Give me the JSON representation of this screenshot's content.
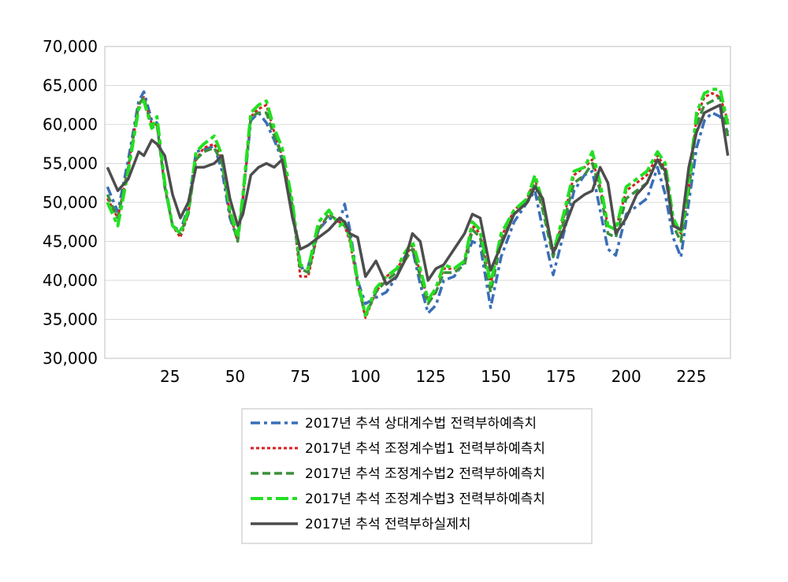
{
  "chart_data": {
    "type": "line",
    "title": "",
    "xlabel": "",
    "ylabel": "",
    "xlim": [
      0,
      240
    ],
    "ylim": [
      30000,
      70000
    ],
    "x_ticks": [
      25,
      50,
      75,
      100,
      125,
      150,
      175,
      200,
      225
    ],
    "x_tick_labels": [
      "25",
      "50",
      "75",
      "100",
      "125",
      "150",
      "175",
      "200",
      "225"
    ],
    "y_ticks": [
      30000,
      35000,
      40000,
      45000,
      50000,
      55000,
      60000,
      65000,
      70000
    ],
    "y_tick_labels": [
      "30,000",
      "35,000",
      "40,000",
      "45,000",
      "50,000",
      "55,000",
      "60,000",
      "65,000",
      "70,000"
    ],
    "grid": true,
    "legend_position": "bottom",
    "x": [
      1,
      5,
      9,
      13,
      15,
      18,
      20,
      23,
      26,
      29,
      32,
      35,
      38,
      42,
      45,
      48,
      51,
      53,
      56,
      59,
      62,
      65,
      68,
      72,
      75,
      78,
      82,
      86,
      90,
      92,
      94,
      97,
      100,
      104,
      108,
      112,
      115,
      118,
      121,
      124,
      127,
      130,
      134,
      138,
      141,
      144,
      148,
      152,
      157,
      162,
      165,
      168,
      172,
      176,
      180,
      184,
      187,
      190,
      193,
      196,
      200,
      204,
      208,
      212,
      215,
      218,
      221,
      224,
      227,
      230,
      233,
      236,
      239
    ],
    "series": [
      {
        "name": "2017년 추석 상대계수법 전력부하예측치",
        "color": "#3A6EB8",
        "dash": "dashdot",
        "values": [
          52000,
          48800,
          55500,
          63000,
          64200,
          60500,
          60200,
          52000,
          47000,
          46300,
          49500,
          56500,
          56800,
          57200,
          54000,
          48000,
          45200,
          50500,
          60500,
          61500,
          60200,
          58000,
          55500,
          49000,
          41500,
          41800,
          46500,
          48000,
          47500,
          49800,
          46500,
          40000,
          37000,
          37800,
          38500,
          40500,
          43000,
          44000,
          39500,
          35800,
          36800,
          40000,
          40500,
          42500,
          45000,
          44500,
          36500,
          43000,
          47500,
          50000,
          51500,
          46500,
          40700,
          46000,
          51500,
          53500,
          54000,
          49000,
          44000,
          43200,
          48500,
          49500,
          50500,
          54500,
          51000,
          45500,
          43000,
          50000,
          57000,
          60500,
          61500,
          61000,
          59000
        ]
      },
      {
        "name": "2017년 추석 조정계수법1 전력부하예측치",
        "color": "#D42020",
        "dash": "dot",
        "values": [
          50500,
          48000,
          54500,
          62500,
          63500,
          60000,
          60000,
          52000,
          47000,
          45500,
          48500,
          55500,
          57000,
          57500,
          55500,
          48500,
          45000,
          50500,
          61000,
          62000,
          62500,
          59000,
          56000,
          49500,
          40500,
          40500,
          46500,
          48500,
          47500,
          47000,
          45000,
          39500,
          35200,
          38500,
          40500,
          41500,
          43000,
          44500,
          41000,
          37500,
          38500,
          41500,
          41500,
          42500,
          47000,
          46000,
          39500,
          45500,
          49000,
          50500,
          53000,
          49500,
          43500,
          48000,
          53500,
          54500,
          55500,
          52000,
          47000,
          46500,
          51500,
          52500,
          53500,
          56000,
          54500,
          47500,
          46000,
          52000,
          61000,
          63500,
          64000,
          63500,
          60500
        ]
      },
      {
        "name": "2017년 추석 조정계수법2 전력부하예측치",
        "color": "#3C8F3C",
        "dash": "dash",
        "values": [
          51000,
          48000,
          54500,
          62500,
          63500,
          59500,
          60000,
          52000,
          47000,
          46000,
          48500,
          55500,
          56500,
          57000,
          55000,
          48500,
          45000,
          50500,
          61000,
          61500,
          61500,
          58500,
          56000,
          49500,
          41500,
          41000,
          46500,
          48500,
          47500,
          47000,
          45500,
          39500,
          35500,
          38500,
          40000,
          41000,
          42500,
          44000,
          40500,
          37000,
          38500,
          41000,
          41000,
          42000,
          46500,
          45500,
          38500,
          45000,
          48500,
          50000,
          52500,
          49000,
          43000,
          47500,
          52500,
          53500,
          55000,
          51500,
          46000,
          45500,
          50500,
          51500,
          52500,
          55500,
          53500,
          47000,
          45000,
          51500,
          60000,
          62500,
          63000,
          63500,
          58500
        ]
      },
      {
        "name": "2017년 추석 조정계수법3 전력부하예측치",
        "color": "#22E022",
        "dash": "longdashdot",
        "values": [
          50000,
          47000,
          54000,
          62000,
          63000,
          59500,
          61000,
          52500,
          47000,
          46000,
          49000,
          56500,
          57500,
          58500,
          56000,
          49000,
          45500,
          51000,
          61500,
          62500,
          63000,
          59500,
          57000,
          50000,
          42000,
          41500,
          47500,
          49000,
          47000,
          47500,
          45500,
          40000,
          35500,
          39000,
          40500,
          41500,
          43500,
          45000,
          41500,
          37500,
          39000,
          42000,
          41500,
          42500,
          47500,
          46500,
          39500,
          46000,
          49000,
          50500,
          53500,
          50000,
          43500,
          48500,
          54000,
          54500,
          56500,
          52500,
          47000,
          46500,
          52000,
          53000,
          54000,
          56500,
          55000,
          48000,
          46000,
          52500,
          61500,
          64000,
          64500,
          64500,
          60000
        ]
      },
      {
        "name": "2017년 추석 전력부하실제치",
        "color": "#4D4D4D",
        "dash": "solid",
        "values": [
          54500,
          51500,
          53000,
          56500,
          56000,
          58000,
          57500,
          56000,
          51000,
          48000,
          50000,
          54500,
          54500,
          55000,
          56000,
          50500,
          47000,
          48500,
          53500,
          54500,
          55000,
          54500,
          55500,
          48000,
          44000,
          44500,
          45500,
          46500,
          48000,
          47500,
          46000,
          45500,
          40500,
          42500,
          39500,
          40500,
          42500,
          46000,
          45000,
          40000,
          41500,
          42000,
          44000,
          46000,
          48500,
          48000,
          41300,
          44500,
          48500,
          50000,
          52000,
          50500,
          43500,
          46500,
          50000,
          51000,
          51500,
          54500,
          52500,
          46000,
          48000,
          51000,
          52500,
          55500,
          54000,
          47000,
          46500,
          54500,
          59000,
          61500,
          62000,
          62500,
          56000
        ]
      }
    ]
  }
}
